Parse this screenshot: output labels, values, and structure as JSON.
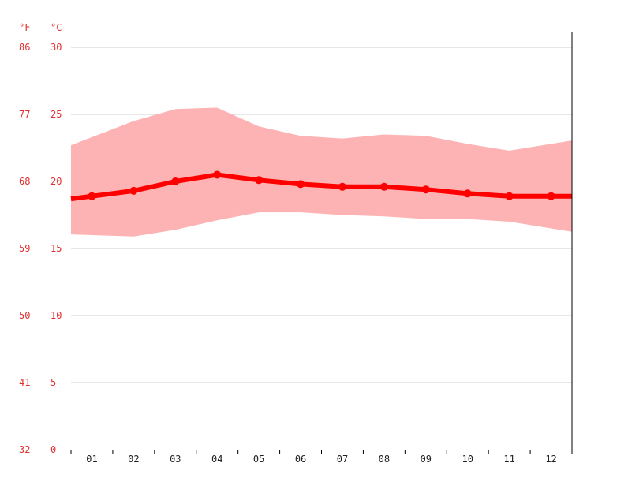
{
  "chart_data": {
    "type": "line",
    "units": {
      "left": "°F",
      "right": "°C"
    },
    "y_ticks_c": [
      30,
      25,
      20,
      15,
      10,
      5,
      0
    ],
    "y_ticks_f": [
      86,
      77,
      68,
      59,
      50,
      41,
      32
    ],
    "ylim": [
      0,
      30
    ],
    "categories": [
      "01",
      "02",
      "03",
      "04",
      "05",
      "06",
      "07",
      "08",
      "09",
      "10",
      "11",
      "12"
    ],
    "series": [
      {
        "role": "average",
        "values": [
          18.9,
          19.3,
          20.0,
          20.5,
          20.1,
          19.8,
          19.6,
          19.6,
          19.4,
          19.1,
          18.9,
          18.9
        ]
      },
      {
        "role": "max",
        "values": [
          23.3,
          24.5,
          25.4,
          25.5,
          24.1,
          23.4,
          23.2,
          23.5,
          23.4,
          22.8,
          22.3,
          22.8
        ]
      },
      {
        "role": "min",
        "values": [
          16.0,
          15.9,
          16.4,
          17.1,
          17.7,
          17.7,
          17.5,
          17.4,
          17.2,
          17.2,
          17.0,
          16.5
        ]
      }
    ],
    "colors": {
      "band": "#fdb3b3",
      "line": "#ff0000",
      "grid": "#cccccc",
      "axis": "#000000",
      "tick_text": "#e03030"
    },
    "grid": true
  }
}
